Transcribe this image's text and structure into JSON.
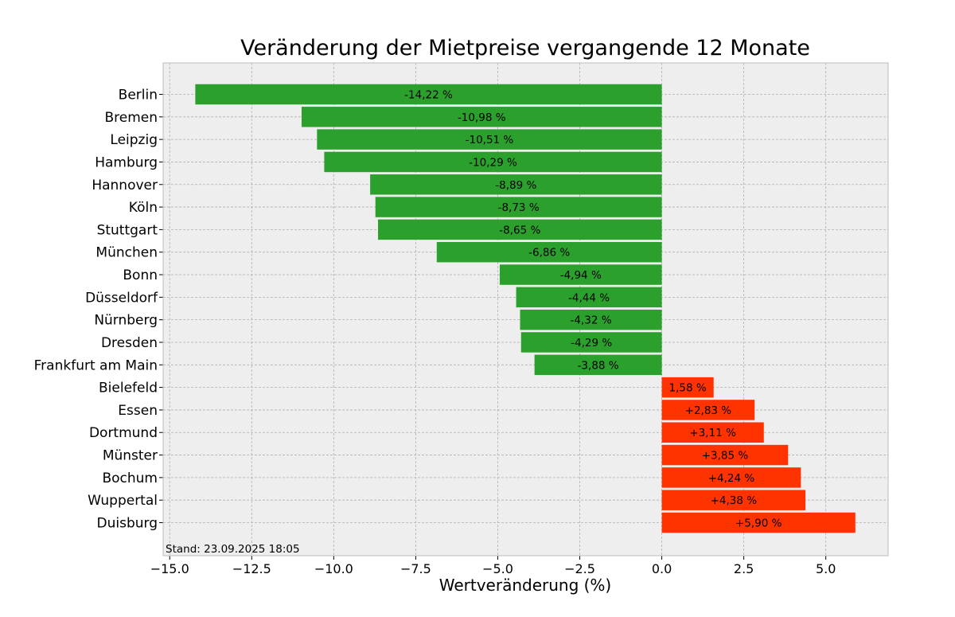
{
  "chart_data": {
    "type": "bar",
    "orientation": "horizontal",
    "title": "Veränderung der Mietpreise vergangende 12 Monate",
    "xlabel": "Wertveränderung (%)",
    "ylabel": "",
    "xlim": [
      -15.2,
      6.9
    ],
    "xticks": [
      -15.0,
      -12.5,
      -10.0,
      -7.5,
      -5.0,
      -2.5,
      0.0,
      2.5,
      5.0
    ],
    "xtick_labels": [
      "−15.0",
      "−12.5",
      "−10.0",
      "−7.5",
      "−5.0",
      "−2.5",
      "0.0",
      "2.5",
      "5.0"
    ],
    "grid": true,
    "categories": [
      "Berlin",
      "Bremen",
      "Leipzig",
      "Hamburg",
      "Hannover",
      "Köln",
      "Stuttgart",
      "München",
      "Bonn",
      "Düsseldorf",
      "Nürnberg",
      "Dresden",
      "Frankfurt am Main",
      "Bielefeld",
      "Essen",
      "Dortmund",
      "Münster",
      "Bochum",
      "Wuppertal",
      "Duisburg"
    ],
    "values": [
      -14.22,
      -10.98,
      -10.51,
      -10.29,
      -8.89,
      -8.73,
      -8.65,
      -6.86,
      -4.94,
      -4.44,
      -4.32,
      -4.29,
      -3.88,
      1.58,
      2.83,
      3.11,
      3.85,
      4.24,
      4.38,
      5.9
    ],
    "value_labels": [
      "-14,22 %",
      "-10,98 %",
      "-10,51 %",
      "-10,29 %",
      "-8,89 %",
      "-8,73 %",
      "-8,65 %",
      "-6,86 %",
      "-4,94 %",
      "-4,44 %",
      "-4,32 %",
      "-4,29 %",
      "-3,88 %",
      "1,58 %",
      "+2,83 %",
      "+3,11 %",
      "+3,85 %",
      "+4,24 %",
      "+4,38 %",
      "+5,90 %"
    ],
    "colors": {
      "negative": "#2ca02c",
      "positive": "#ff3300",
      "background": "#eeeeee",
      "grid": "#b0b0b0",
      "frame": "#bcbcbc"
    },
    "annotation": "Stand: 23.09.2025 18:05"
  }
}
